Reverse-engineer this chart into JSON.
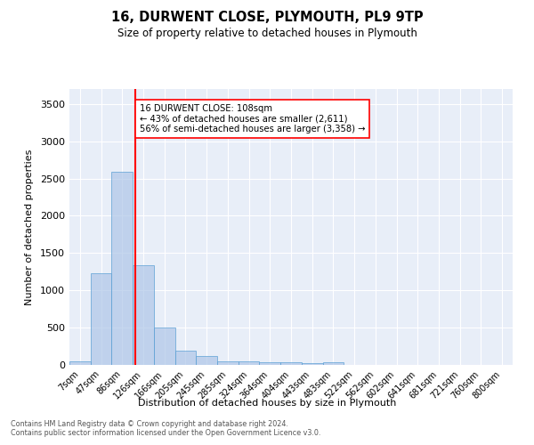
{
  "title": "16, DURWENT CLOSE, PLYMOUTH, PL9 9TP",
  "subtitle": "Size of property relative to detached houses in Plymouth",
  "xlabel": "Distribution of detached houses by size in Plymouth",
  "ylabel": "Number of detached properties",
  "categories": [
    "7sqm",
    "47sqm",
    "86sqm",
    "126sqm",
    "166sqm",
    "205sqm",
    "245sqm",
    "285sqm",
    "324sqm",
    "364sqm",
    "404sqm",
    "443sqm",
    "483sqm",
    "522sqm",
    "562sqm",
    "602sqm",
    "641sqm",
    "681sqm",
    "721sqm",
    "760sqm",
    "800sqm"
  ],
  "bar_values": [
    50,
    1230,
    2590,
    1340,
    500,
    190,
    115,
    50,
    45,
    30,
    30,
    25,
    30,
    0,
    0,
    0,
    0,
    0,
    0,
    0,
    0
  ],
  "bar_color": "#aec6e8",
  "bar_edge_color": "#5a9fd4",
  "bar_alpha": 0.7,
  "vline_x": 2.62,
  "vline_color": "red",
  "annotation_text": "16 DURWENT CLOSE: 108sqm\n← 43% of detached houses are smaller (2,611)\n56% of semi-detached houses are larger (3,358) →",
  "annotation_box_color": "white",
  "annotation_box_edge": "red",
  "ylim": [
    0,
    3700
  ],
  "yticks": [
    0,
    500,
    1000,
    1500,
    2000,
    2500,
    3000,
    3500
  ],
  "bg_color": "#e8eef8",
  "grid_color": "white",
  "footer_line1": "Contains HM Land Registry data © Crown copyright and database right 2024.",
  "footer_line2": "Contains public sector information licensed under the Open Government Licence v3.0."
}
